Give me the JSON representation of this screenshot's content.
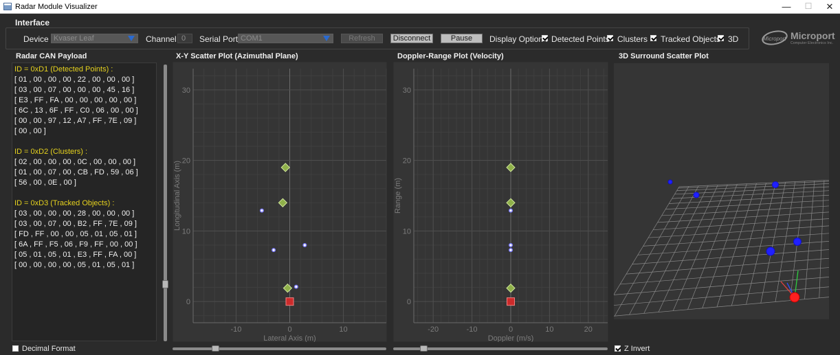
{
  "window": {
    "title": "Radar Module Visualizer",
    "minimize": "—",
    "maximize": "☐",
    "close": "✕"
  },
  "interface": {
    "group_title": "Interface",
    "device_label": "Device :",
    "device_value": "Kvaser Leaf",
    "channel_label": "Channel :",
    "channel_value": "0",
    "serial_label": "Serial Port :",
    "serial_value": "COM1",
    "refresh_label": "Refresh",
    "disconnect_label": "Disconnect",
    "pause_label": "Pause",
    "display_option_label": "Display Option :",
    "options": [
      {
        "label": "Detected Points",
        "checked": true
      },
      {
        "label": "Clusters",
        "checked": true
      },
      {
        "label": "Tracked Objects",
        "checked": true
      },
      {
        "label": "3D",
        "checked": true
      }
    ]
  },
  "logo": {
    "mark_text": "Microport",
    "name": "Microport",
    "subtitle": "Computer Electronics Inc."
  },
  "can_panel": {
    "title": "Radar CAN Payload",
    "lines": [
      {
        "kind": "hdr",
        "text": "ID = 0xD1 (Detected Points) :"
      },
      {
        "kind": "row",
        "text": "[ 01 , 00 , 00 , 00 , 22 , 00 , 00 , 00 ]"
      },
      {
        "kind": "row",
        "text": "[ 03 , 00 , 07 , 00 , 00 , 00 , 45 , 16 ]"
      },
      {
        "kind": "row",
        "text": "[ E3 , FF , FA , 00 , 00 , 00 , 00 , 00 ]"
      },
      {
        "kind": "row",
        "text": "[ 6C , 13 , 6F , FF , C0 , 06 , 00 , 00 ]"
      },
      {
        "kind": "row",
        "text": "[ 00 , 00 , 97 , 12 , A7 , FF , 7E , 09 ]"
      },
      {
        "kind": "row",
        "text": "[ 00 , 00 ]"
      },
      {
        "kind": "gap",
        "text": ""
      },
      {
        "kind": "hdr",
        "text": "ID = 0xD2 (Clusters) :"
      },
      {
        "kind": "row",
        "text": "[ 02 , 00 , 00 , 00 , 0C , 00 , 00 , 00 ]"
      },
      {
        "kind": "row",
        "text": "[ 01 , 00 , 07 , 00 , CB , FD , 59 , 06 ]"
      },
      {
        "kind": "row",
        "text": "[ 56 , 00 , 0E , 00 ]"
      },
      {
        "kind": "gap",
        "text": ""
      },
      {
        "kind": "hdr",
        "text": "ID = 0xD3 (Tracked Objects) :"
      },
      {
        "kind": "row",
        "text": "[ 03 , 00 , 00 , 00 , 28 , 00 , 00 , 00 ]"
      },
      {
        "kind": "row",
        "text": "[ 03 , 00 , 07 , 00 , B2 , FF , 7E , 09 ]"
      },
      {
        "kind": "row",
        "text": "[ FD , FF , 00 , 00 , 05 , 01 , 05 , 01 ]"
      },
      {
        "kind": "row",
        "text": "[ 6A , FF , F5 , 06 , F9 , FF , 00 , 00 ]"
      },
      {
        "kind": "row",
        "text": "[ 05 , 01 , 05 , 01 , E3 , FF , FA , 00 ]"
      },
      {
        "kind": "row",
        "text": "[ 00 , 00 , 00 , 00 , 05 , 01 , 05 , 01 ]"
      }
    ],
    "decimal_format_label": "Decimal Format",
    "decimal_format_checked": false
  },
  "chart_data": [
    {
      "type": "scatter",
      "title": "X-Y Scatter Plot (Azimuthal Plane)",
      "xlabel": "Lateral Axis (m)",
      "ylabel": "Longitudinal Axis (m)",
      "xlim": [
        -18,
        18
      ],
      "ylim": [
        -3,
        33
      ],
      "xticks": [
        -10,
        0,
        10
      ],
      "yticks": [
        0,
        10,
        20,
        30
      ],
      "grid": true,
      "series": [
        {
          "marker": "circle",
          "color": "#7a7aff",
          "points": [
            [
              -5.2,
              12.9
            ],
            [
              -3.0,
              7.3
            ],
            [
              2.8,
              8.0
            ],
            [
              1.2,
              2.1
            ]
          ]
        },
        {
          "marker": "diamond",
          "color": "#8fb04a",
          "points": [
            [
              -0.8,
              19.0
            ],
            [
              -1.3,
              14.0
            ],
            [
              -0.4,
              1.9
            ]
          ]
        },
        {
          "marker": "square",
          "color": "#cc2b2b",
          "points": [
            [
              0,
              0
            ]
          ]
        }
      ]
    },
    {
      "type": "scatter",
      "title": "Doppler-Range Plot (Velocity)",
      "xlabel": "Doppler (m/s)",
      "ylabel": "Range (m)",
      "xlim": [
        -25,
        25
      ],
      "ylim": [
        -3,
        33
      ],
      "xticks": [
        -20,
        -10,
        0,
        10,
        20
      ],
      "yticks": [
        0,
        10,
        20,
        30
      ],
      "grid": true,
      "series": [
        {
          "marker": "circle",
          "color": "#7a7aff",
          "points": [
            [
              0,
              12.9
            ],
            [
              0,
              8.0
            ],
            [
              0,
              7.3
            ]
          ]
        },
        {
          "marker": "diamond",
          "color": "#8fb04a",
          "points": [
            [
              0,
              19.0
            ],
            [
              0,
              14.0
            ],
            [
              0,
              1.9
            ]
          ]
        },
        {
          "marker": "square",
          "color": "#cc2b2b",
          "points": [
            [
              0,
              0
            ]
          ]
        }
      ]
    }
  ],
  "surround_panel": {
    "title": "3D Surround Scatter Plot",
    "z_invert_label": "Z Invert",
    "z_invert_checked": true
  },
  "colors": {
    "background": "#2b2b2b",
    "panel": "#353535",
    "grid": "#454545",
    "header_yellow": "#e6d21e",
    "detected": "#7a7aff",
    "cluster": "#8fb04a",
    "origin": "#cc2b2b"
  }
}
